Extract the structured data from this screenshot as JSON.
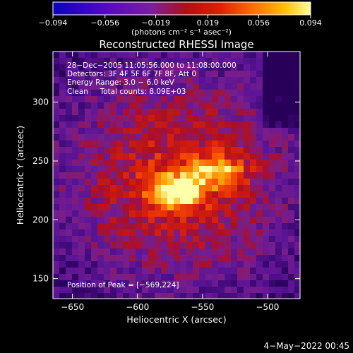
{
  "chart_data": {
    "type": "heatmap",
    "title": "Reconstructed RHESSI Image",
    "xlabel": "Heliocentric X (arcsec)",
    "ylabel": "Heliocentric Y (arcsec)",
    "xlim": [
      -665,
      -475
    ],
    "ylim": [
      133,
      343
    ],
    "x_ticks": [
      -650,
      -600,
      -550,
      -500
    ],
    "y_ticks": [
      150,
      200,
      250,
      300
    ],
    "x_tick_labels": [
      "−650",
      "−600",
      "−550",
      "−500"
    ],
    "y_tick_labels": [
      "150",
      "200",
      "250",
      "300"
    ],
    "colorbar": {
      "range": [
        -0.094,
        0.094
      ],
      "ticks": [
        -0.094,
        -0.056,
        -0.019,
        0.019,
        0.056,
        0.094
      ],
      "tick_labels": [
        "−0.094",
        "−0.056",
        "−0.019",
        "0.019",
        "0.056",
        "0.094"
      ],
      "label": "(photons cm⁻² s⁻¹ asec⁻²)",
      "colors": [
        "#0a00c8",
        "#5a0ac0",
        "#7a1ea0",
        "#b01010",
        "#e02000",
        "#ff7000",
        "#ffc000",
        "#ffffa0"
      ]
    },
    "annotations": [
      "28−Dec−2005 11:05:56.000 to 11:08:00.000",
      "Detectors: 3F 4F 5F 6F 7F 8F, Att 0",
      "Energy Range: 3.0 − 6.0 keV",
      "Clean     Total counts: 8.09E+03"
    ],
    "peak_label": "Position of Peak = [−569,224]",
    "peak": [
      -569,
      224
    ],
    "grid": false,
    "legend": "none"
  },
  "timestamp": "4−May−2022 00:45"
}
